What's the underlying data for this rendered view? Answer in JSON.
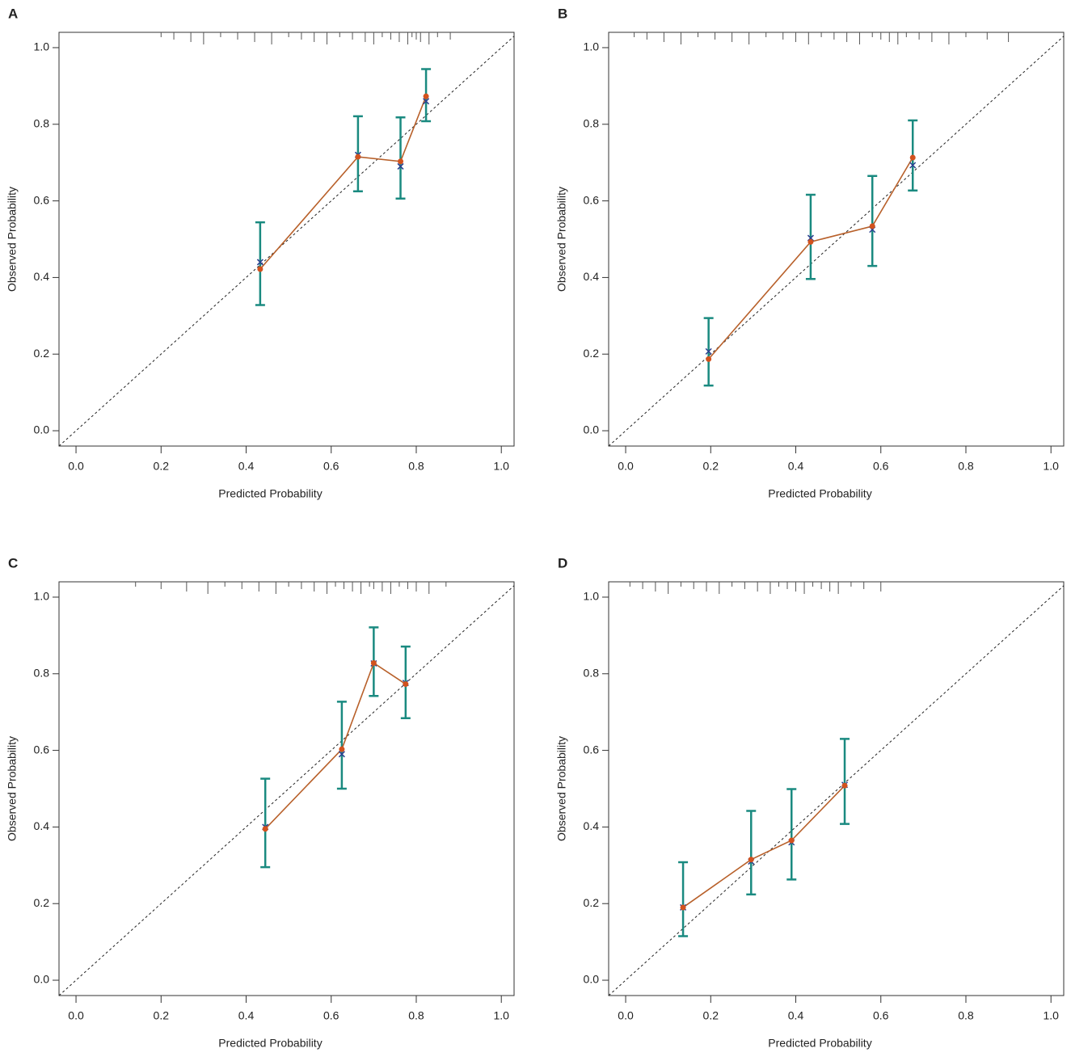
{
  "chart_data": [
    {
      "type": "calibration",
      "title": "A",
      "xlabel": "Predicted Probability",
      "ylabel": "Observed Probability",
      "xlim": [
        -0.04,
        1.03
      ],
      "ylim": [
        -0.04,
        1.04
      ],
      "xticks": [
        {
          "value": 0,
          "label": "0.0"
        },
        0.2,
        0.4,
        0.6,
        0.8,
        {
          "value": 1,
          "label": "1.0"
        }
      ],
      "yticks": [
        {
          "value": 0,
          "label": "0.0"
        },
        0.2,
        0.4,
        0.6,
        0.8,
        {
          "value": 1,
          "label": "1.0"
        }
      ],
      "x": [
        0.433,
        0.663,
        0.763,
        0.823
      ],
      "observed": {
        "color": "#d2521e",
        "line_color": "#b8602a",
        "values": [
          0.422,
          0.715,
          0.703,
          0.873
        ]
      },
      "estimate": {
        "color": "#2b3f8f",
        "values": [
          0.44,
          0.72,
          0.69,
          0.86
        ]
      },
      "interval": {
        "color": "#1a8a80",
        "lower": [
          0.328,
          0.625,
          0.606,
          0.808
        ],
        "upper": [
          0.544,
          0.821,
          0.818,
          0.944
        ]
      },
      "rug": [
        0.2,
        0.23,
        0.27,
        0.3,
        0.34,
        0.38,
        0.42,
        0.46,
        0.5,
        0.53,
        0.56,
        0.59,
        0.62,
        0.65,
        0.68,
        0.7,
        0.72,
        0.74,
        0.76,
        0.78,
        0.79,
        0.8,
        0.81,
        0.83,
        0.85,
        0.88
      ]
    },
    {
      "type": "calibration",
      "title": "B",
      "xlabel": "Predicted Probability",
      "ylabel": "Observed Probability",
      "xlim": [
        -0.04,
        1.03
      ],
      "ylim": [
        -0.04,
        1.04
      ],
      "xticks": [
        {
          "value": 0,
          "label": "0.0"
        },
        0.2,
        0.4,
        0.6,
        0.8,
        {
          "value": 1,
          "label": "1.0"
        }
      ],
      "yticks": [
        {
          "value": 0,
          "label": "0.0"
        },
        0.2,
        0.4,
        0.6,
        0.8,
        {
          "value": 1,
          "label": "1.0"
        }
      ],
      "x": [
        0.195,
        0.435,
        0.58,
        0.675
      ],
      "observed": {
        "color": "#d2521e",
        "line_color": "#b8602a",
        "values": [
          0.187,
          0.493,
          0.534,
          0.713
        ]
      },
      "estimate": {
        "color": "#2b3f8f",
        "values": [
          0.207,
          0.503,
          0.525,
          0.693
        ]
      },
      "interval": {
        "color": "#1a8a80",
        "lower": [
          0.118,
          0.396,
          0.43,
          0.627
        ],
        "upper": [
          0.294,
          0.616,
          0.665,
          0.81
        ]
      },
      "rug": [
        0.02,
        0.05,
        0.09,
        0.13,
        0.17,
        0.21,
        0.25,
        0.29,
        0.33,
        0.37,
        0.4,
        0.43,
        0.46,
        0.49,
        0.52,
        0.55,
        0.58,
        0.6,
        0.62,
        0.64,
        0.66,
        0.69,
        0.72,
        0.76,
        0.8,
        0.85,
        0.9
      ]
    },
    {
      "type": "calibration",
      "title": "C",
      "xlabel": "Predicted Probability",
      "ylabel": "Observed Probability",
      "xlim": [
        -0.04,
        1.03
      ],
      "ylim": [
        -0.04,
        1.04
      ],
      "xticks": [
        {
          "value": 0,
          "label": "0.0"
        },
        0.2,
        0.4,
        0.6,
        0.8,
        {
          "value": 1,
          "label": "1.0"
        }
      ],
      "yticks": [
        {
          "value": 0,
          "label": "0.0"
        },
        0.2,
        0.4,
        0.6,
        0.8,
        {
          "value": 1,
          "label": "1.0"
        }
      ],
      "x": [
        0.445,
        0.625,
        0.7,
        0.775
      ],
      "observed": {
        "color": "#d2521e",
        "line_color": "#b8602a",
        "values": [
          0.395,
          0.603,
          0.828,
          0.773
        ]
      },
      "estimate": {
        "color": "#2b3f8f",
        "values": [
          0.4,
          0.59,
          0.827,
          0.776
        ]
      },
      "interval": {
        "color": "#1a8a80",
        "lower": [
          0.295,
          0.5,
          0.742,
          0.684
        ],
        "upper": [
          0.526,
          0.727,
          0.921,
          0.871
        ]
      },
      "rug": [
        0.14,
        0.2,
        0.26,
        0.31,
        0.35,
        0.39,
        0.43,
        0.47,
        0.5,
        0.53,
        0.56,
        0.59,
        0.61,
        0.63,
        0.65,
        0.67,
        0.69,
        0.7,
        0.72,
        0.74,
        0.76,
        0.78,
        0.8,
        0.83,
        0.87
      ]
    },
    {
      "type": "calibration",
      "title": "D",
      "xlabel": "Predicted Probability",
      "ylabel": "Observed Probability",
      "xlim": [
        -0.04,
        1.03
      ],
      "ylim": [
        -0.04,
        1.04
      ],
      "xticks": [
        {
          "value": 0,
          "label": "0.0"
        },
        0.2,
        0.4,
        0.6,
        0.8,
        {
          "value": 1,
          "label": "1.0"
        }
      ],
      "yticks": [
        {
          "value": 0,
          "label": "0.0"
        },
        0.2,
        0.4,
        0.6,
        0.8,
        {
          "value": 1,
          "label": "1.0"
        }
      ],
      "x": [
        0.135,
        0.295,
        0.39,
        0.515
      ],
      "observed": {
        "color": "#d2521e",
        "line_color": "#b8602a",
        "values": [
          0.19,
          0.315,
          0.365,
          0.508
        ]
      },
      "estimate": {
        "color": "#2b3f8f",
        "values": [
          0.19,
          0.31,
          0.36,
          0.51
        ]
      },
      "interval": {
        "color": "#1a8a80",
        "lower": [
          0.115,
          0.224,
          0.263,
          0.408
        ],
        "upper": [
          0.308,
          0.442,
          0.499,
          0.63
        ]
      },
      "rug": [
        0.01,
        0.04,
        0.07,
        0.1,
        0.13,
        0.16,
        0.19,
        0.22,
        0.25,
        0.28,
        0.31,
        0.34,
        0.36,
        0.38,
        0.4,
        0.42,
        0.44,
        0.46,
        0.48,
        0.5,
        0.53,
        0.56,
        0.6
      ]
    }
  ]
}
